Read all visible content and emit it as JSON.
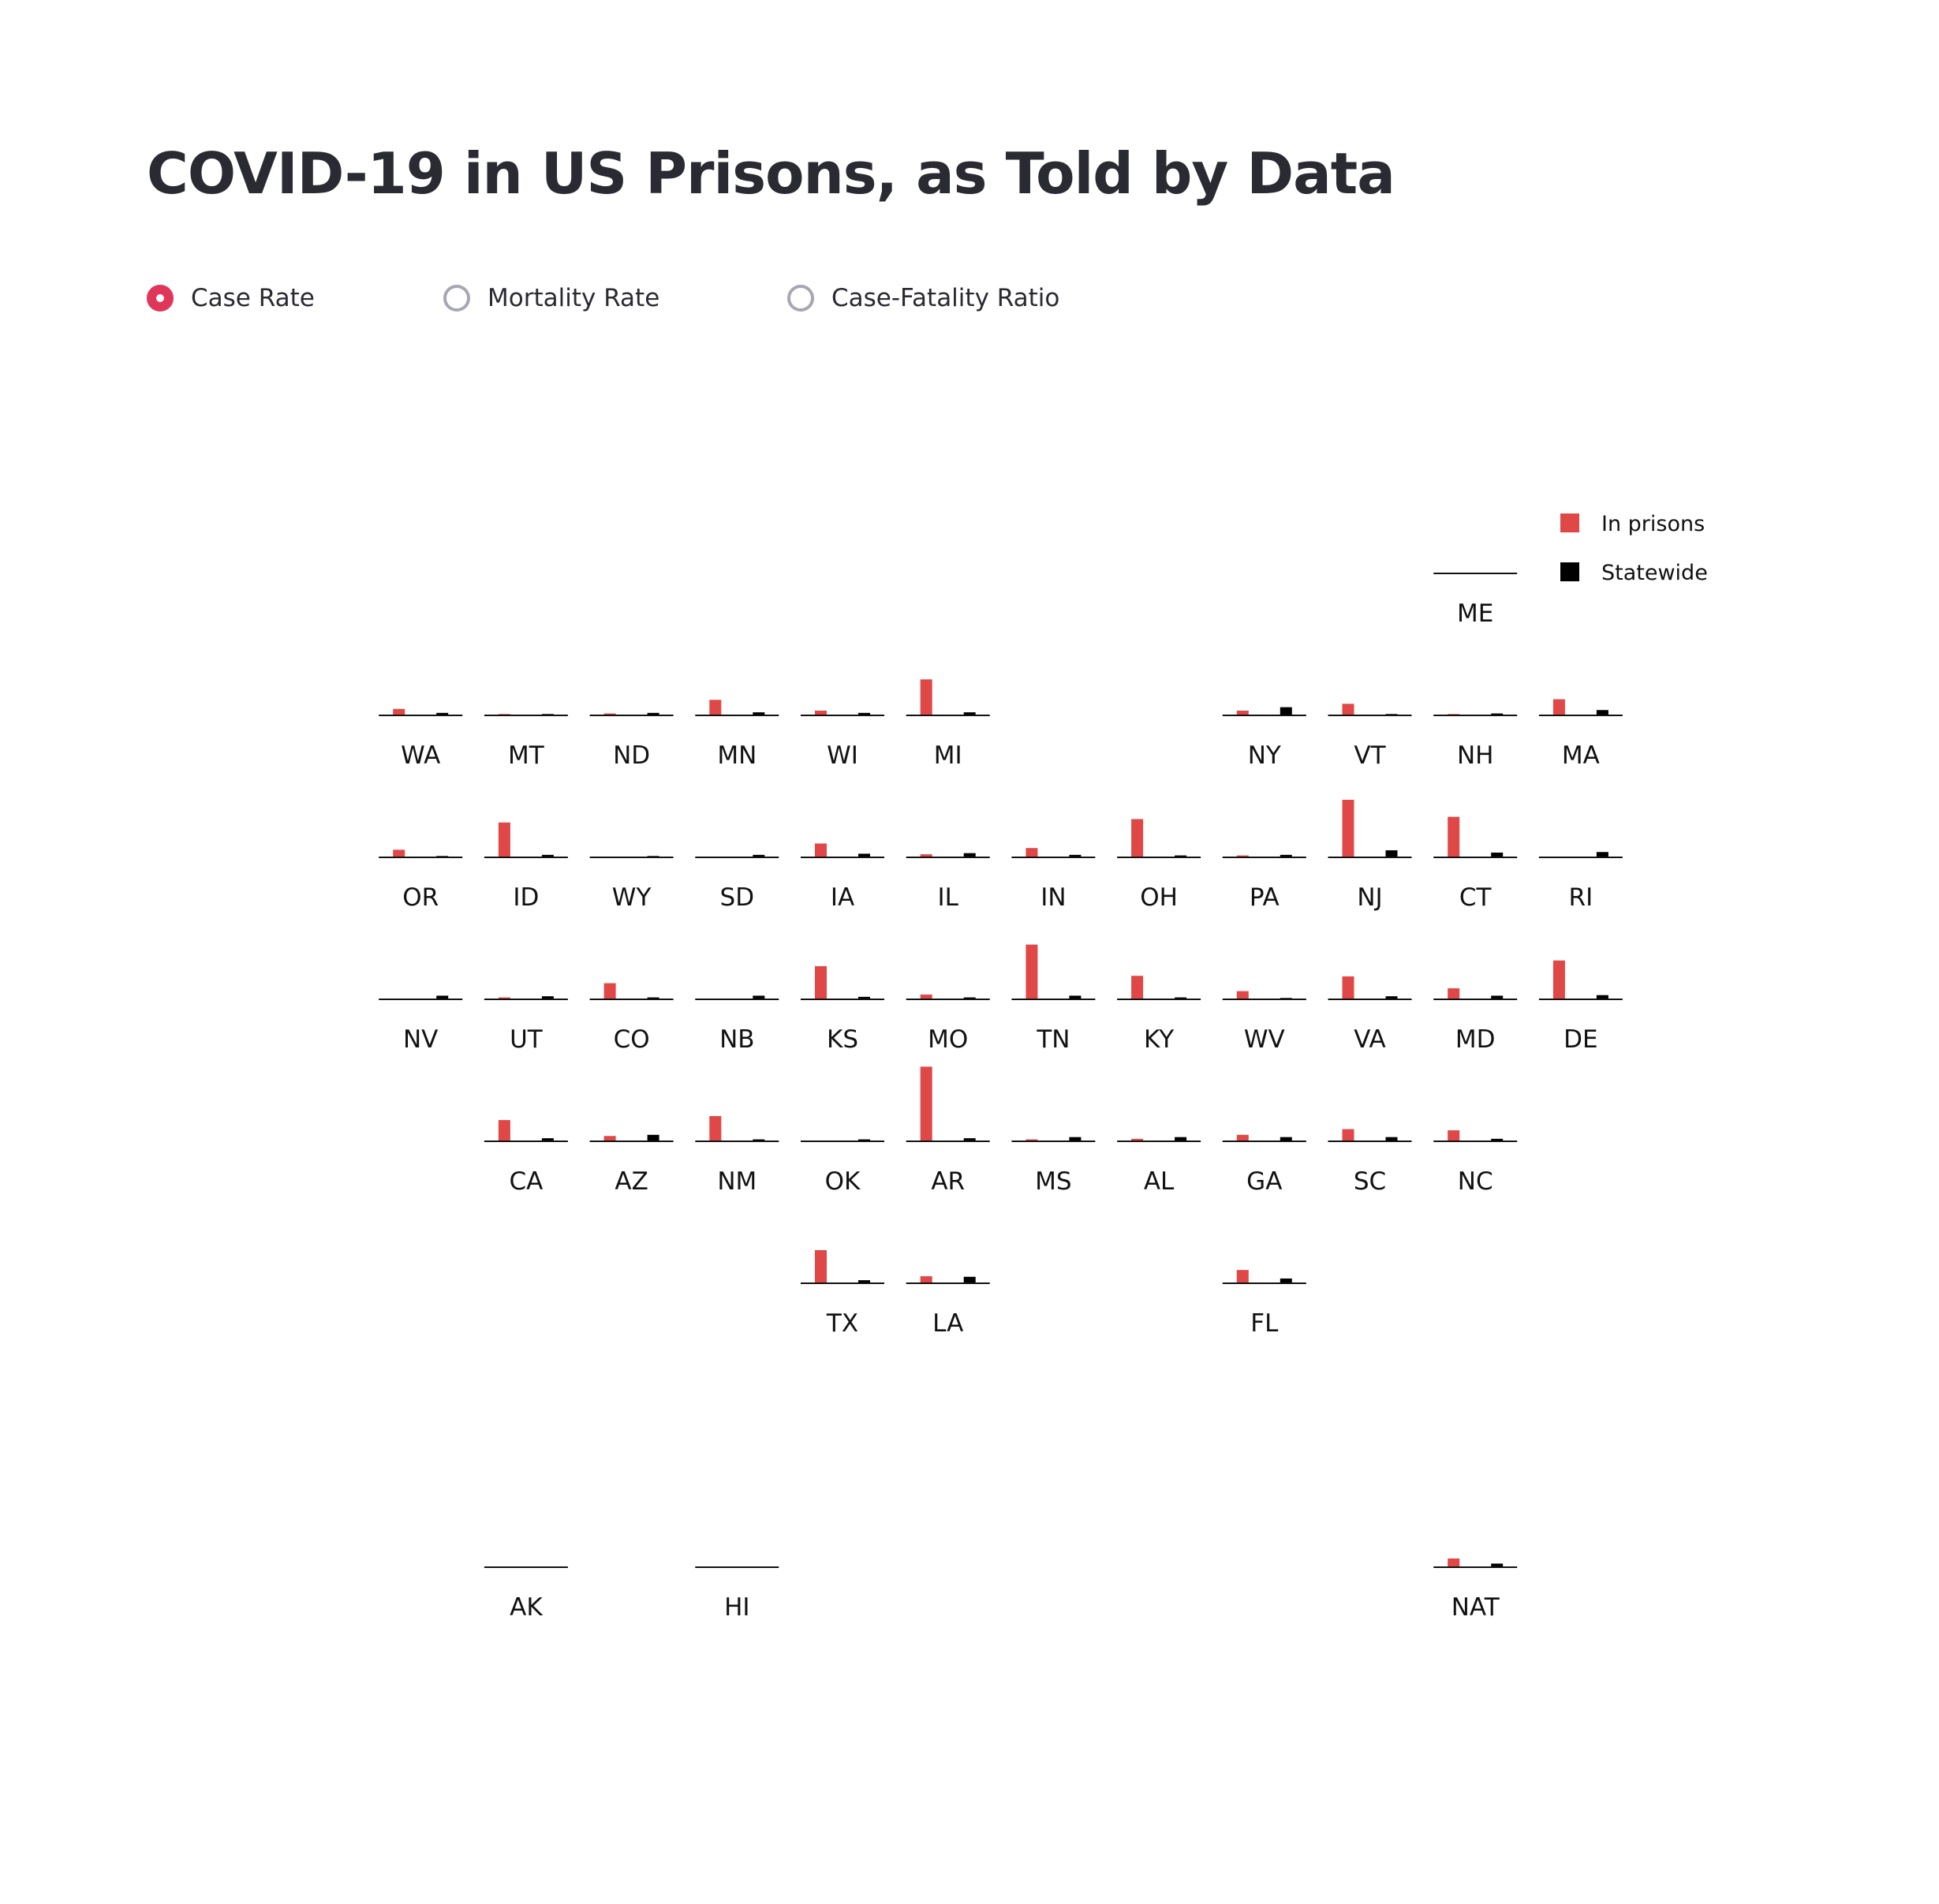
{
  "title": "COVID-19 in US Prisons, as Told by Data",
  "controls": {
    "options": [
      {
        "label": "Case Rate",
        "selected": true
      },
      {
        "label": "Mortality Rate",
        "selected": false
      },
      {
        "label": "Case-Fatality Ratio",
        "selected": false
      }
    ]
  },
  "colors": {
    "prisons": "#e04848",
    "statewide": "#000000",
    "accent": "#e0365a",
    "radio_border": "#a7a7b3"
  },
  "chart_data": {
    "type": "bar",
    "layout": "tile-grid map",
    "ylim": [
      0,
      1
    ],
    "legend": {
      "placement": "top-right",
      "entries": [
        {
          "label": "In prisons",
          "series": "prisons"
        },
        {
          "label": "Statewide",
          "series": "statewide"
        }
      ]
    },
    "tiles": [
      {
        "state": "ME",
        "row": 0,
        "col": 11,
        "prisons": 0.0,
        "statewide": 0.0
      },
      {
        "state": "WA",
        "row": 1,
        "col": 1,
        "prisons": 0.1,
        "statewide": 0.03
      },
      {
        "state": "MT",
        "row": 1,
        "col": 2,
        "prisons": 0.01,
        "statewide": 0.01
      },
      {
        "state": "ND",
        "row": 1,
        "col": 3,
        "prisons": 0.02,
        "statewide": 0.03
      },
      {
        "state": "MN",
        "row": 1,
        "col": 4,
        "prisons": 0.26,
        "statewide": 0.04
      },
      {
        "state": "WI",
        "row": 1,
        "col": 5,
        "prisons": 0.07,
        "statewide": 0.03
      },
      {
        "state": "MI",
        "row": 1,
        "col": 6,
        "prisons": 0.62,
        "statewide": 0.04
      },
      {
        "state": "NY",
        "row": 1,
        "col": 9,
        "prisons": 0.07,
        "statewide": 0.13
      },
      {
        "state": "VT",
        "row": 1,
        "col": 10,
        "prisons": 0.19,
        "statewide": 0.01
      },
      {
        "state": "NH",
        "row": 1,
        "col": 11,
        "prisons": 0.01,
        "statewide": 0.02
      },
      {
        "state": "MA",
        "row": 1,
        "col": 12,
        "prisons": 0.27,
        "statewide": 0.08
      },
      {
        "state": "OR",
        "row": 2,
        "col": 1,
        "prisons": 0.12,
        "statewide": 0.01
      },
      {
        "state": "ID",
        "row": 2,
        "col": 2,
        "prisons": 0.6,
        "statewide": 0.03
      },
      {
        "state": "WY",
        "row": 2,
        "col": 3,
        "prisons": 0.0,
        "statewide": 0.01
      },
      {
        "state": "SD",
        "row": 2,
        "col": 4,
        "prisons": 0.0,
        "statewide": 0.03
      },
      {
        "state": "IA",
        "row": 2,
        "col": 5,
        "prisons": 0.23,
        "statewide": 0.05
      },
      {
        "state": "IL",
        "row": 2,
        "col": 6,
        "prisons": 0.04,
        "statewide": 0.06
      },
      {
        "state": "IN",
        "row": 2,
        "col": 7,
        "prisons": 0.15,
        "statewide": 0.03
      },
      {
        "state": "OH",
        "row": 2,
        "col": 8,
        "prisons": 0.66,
        "statewide": 0.02
      },
      {
        "state": "PA",
        "row": 2,
        "col": 9,
        "prisons": 0.02,
        "statewide": 0.03
      },
      {
        "state": "NJ",
        "row": 2,
        "col": 10,
        "prisons": 1.0,
        "statewide": 0.11
      },
      {
        "state": "CT",
        "row": 2,
        "col": 11,
        "prisons": 0.7,
        "statewide": 0.07
      },
      {
        "state": "RI",
        "row": 2,
        "col": 12,
        "prisons": 0.0,
        "statewide": 0.08
      },
      {
        "state": "NV",
        "row": 3,
        "col": 1,
        "prisons": 0.0,
        "statewide": 0.05
      },
      {
        "state": "UT",
        "row": 3,
        "col": 2,
        "prisons": 0.02,
        "statewide": 0.04
      },
      {
        "state": "CO",
        "row": 3,
        "col": 3,
        "prisons": 0.27,
        "statewide": 0.02
      },
      {
        "state": "NB",
        "row": 3,
        "col": 4,
        "prisons": 0.0,
        "statewide": 0.05
      },
      {
        "state": "KS",
        "row": 3,
        "col": 5,
        "prisons": 0.57,
        "statewide": 0.03
      },
      {
        "state": "MO",
        "row": 3,
        "col": 6,
        "prisons": 0.07,
        "statewide": 0.02
      },
      {
        "state": "TN",
        "row": 3,
        "col": 7,
        "prisons": 0.95,
        "statewide": 0.05
      },
      {
        "state": "KY",
        "row": 3,
        "col": 8,
        "prisons": 0.4,
        "statewide": 0.02
      },
      {
        "state": "WV",
        "row": 3,
        "col": 9,
        "prisons": 0.13,
        "statewide": 0.01
      },
      {
        "state": "VA",
        "row": 3,
        "col": 10,
        "prisons": 0.39,
        "statewide": 0.04
      },
      {
        "state": "MD",
        "row": 3,
        "col": 11,
        "prisons": 0.18,
        "statewide": 0.05
      },
      {
        "state": "DE",
        "row": 3,
        "col": 12,
        "prisons": 0.67,
        "statewide": 0.06
      },
      {
        "state": "CA",
        "row": 4,
        "col": 2,
        "prisons": 0.36,
        "statewide": 0.04
      },
      {
        "state": "AZ",
        "row": 4,
        "col": 3,
        "prisons": 0.08,
        "statewide": 0.1
      },
      {
        "state": "NM",
        "row": 4,
        "col": 4,
        "prisons": 0.43,
        "statewide": 0.02
      },
      {
        "state": "OK",
        "row": 4,
        "col": 5,
        "prisons": 0.0,
        "statewide": 0.02
      },
      {
        "state": "AR",
        "row": 4,
        "col": 6,
        "prisons": 1.3,
        "statewide": 0.04
      },
      {
        "state": "MS",
        "row": 4,
        "col": 7,
        "prisons": 0.02,
        "statewide": 0.06
      },
      {
        "state": "AL",
        "row": 4,
        "col": 8,
        "prisons": 0.03,
        "statewide": 0.06
      },
      {
        "state": "GA",
        "row": 4,
        "col": 9,
        "prisons": 0.1,
        "statewide": 0.06
      },
      {
        "state": "SC",
        "row": 4,
        "col": 10,
        "prisons": 0.2,
        "statewide": 0.06
      },
      {
        "state": "NC",
        "row": 4,
        "col": 11,
        "prisons": 0.18,
        "statewide": 0.03
      },
      {
        "state": "TX",
        "row": 5,
        "col": 5,
        "prisons": 0.57,
        "statewide": 0.04
      },
      {
        "state": "LA",
        "row": 5,
        "col": 6,
        "prisons": 0.11,
        "statewide": 0.1
      },
      {
        "state": "FL",
        "row": 5,
        "col": 9,
        "prisons": 0.22,
        "statewide": 0.07
      },
      {
        "state": "AK",
        "row": 7,
        "col": 2,
        "prisons": 0.0,
        "statewide": 0.0
      },
      {
        "state": "HI",
        "row": 7,
        "col": 4,
        "prisons": 0.0,
        "statewide": 0.0
      },
      {
        "state": "NAT",
        "row": 7,
        "col": 11,
        "prisons": 0.14,
        "statewide": 0.05
      }
    ]
  }
}
